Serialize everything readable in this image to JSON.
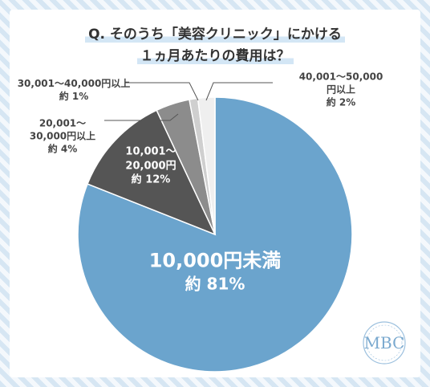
{
  "chart_data": {
    "type": "pie",
    "title": "Q. そのうち「美容クリニック」にかける\n１ヵ月あたりの費用は？",
    "categories": [
      "10,000円未満",
      "10,001～\n20,000円",
      "20,001～\n30,000円以上",
      "30,001～40,000円以上",
      "40,001～50,000円以上"
    ],
    "values": [
      81,
      12,
      4,
      1,
      2
    ],
    "value_labels": [
      "約 81%",
      "約 12%",
      "約 4%",
      "約 1%",
      "約 2%"
    ],
    "colors": [
      "#6ba4cd",
      "#555555",
      "#8c8c8c",
      "#cfcfcf",
      "#efefef"
    ]
  },
  "logo": "MBC"
}
